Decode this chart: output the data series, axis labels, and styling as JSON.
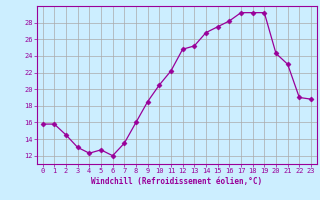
{
  "x": [
    0,
    1,
    2,
    3,
    4,
    5,
    6,
    7,
    8,
    9,
    10,
    11,
    12,
    13,
    14,
    15,
    16,
    17,
    18,
    19,
    20,
    21,
    22,
    23
  ],
  "y": [
    15.8,
    15.8,
    14.5,
    13.0,
    12.3,
    12.7,
    12.0,
    13.5,
    16.0,
    18.5,
    20.5,
    22.2,
    24.8,
    25.2,
    26.8,
    27.5,
    28.2,
    29.2,
    29.2,
    29.2,
    24.3,
    23.0,
    19.0,
    18.8
  ],
  "line_color": "#990099",
  "marker": "D",
  "marker_size": 2.5,
  "bg_color": "#cceeff",
  "grid_color": "#aaaaaa",
  "xlabel": "Windchill (Refroidissement éolien,°C)",
  "ylabel": "",
  "ylim": [
    11,
    30
  ],
  "xlim": [
    -0.5,
    23.5
  ],
  "yticks": [
    12,
    14,
    16,
    18,
    20,
    22,
    24,
    26,
    28
  ],
  "xticks": [
    0,
    1,
    2,
    3,
    4,
    5,
    6,
    7,
    8,
    9,
    10,
    11,
    12,
    13,
    14,
    15,
    16,
    17,
    18,
    19,
    20,
    21,
    22,
    23
  ],
  "label_color": "#990099",
  "tick_color": "#990099",
  "axis_color": "#990099",
  "tick_fontsize": 5.0,
  "xlabel_fontsize": 5.5
}
